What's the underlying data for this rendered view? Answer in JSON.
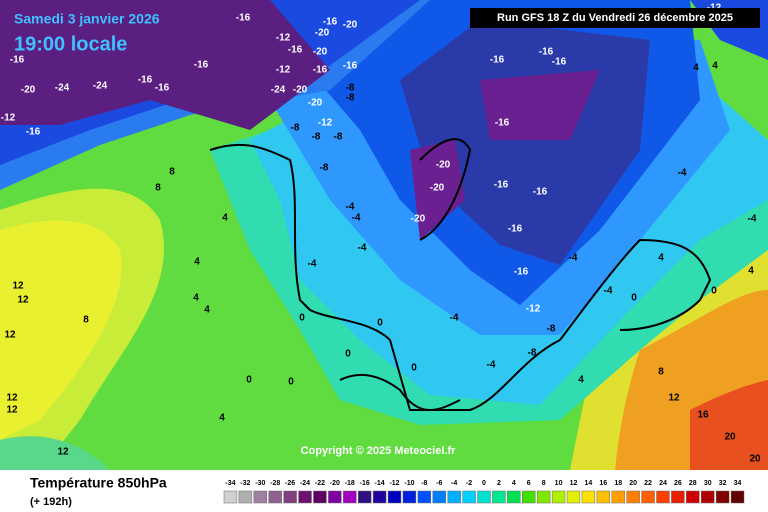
{
  "header": {
    "date": "Samedi 3 janvier 2026",
    "time": "19:00 locale",
    "run": "Run GFS 18 Z du Vendredi 26 décembre 2025"
  },
  "footer": {
    "copyright": "Copyright © 2025 Meteociel.fr",
    "title": "Température 850hPa",
    "lead": "(+ 192h)"
  },
  "scale": {
    "values": [
      -34,
      -32,
      -30,
      -28,
      -26,
      -24,
      -22,
      -20,
      -18,
      -16,
      -14,
      -12,
      -10,
      -8,
      -6,
      -4,
      -2,
      0,
      2,
      4,
      6,
      8,
      10,
      12,
      14,
      16,
      18,
      20,
      22,
      24,
      26,
      28,
      30,
      32,
      34
    ],
    "colors": [
      "#d0d0d0",
      "#b0b0b0",
      "#a080a0",
      "#906090",
      "#804080",
      "#701070",
      "#600060",
      "#8000a0",
      "#a000c0",
      "#301080",
      "#2000a0",
      "#0000c0",
      "#0020e0",
      "#0050ff",
      "#0080ff",
      "#00b0ff",
      "#00d0ff",
      "#00e0d0",
      "#00e890",
      "#00e050",
      "#40e000",
      "#80e800",
      "#b0f000",
      "#e0f000",
      "#ffe000",
      "#ffc000",
      "#ffa000",
      "#ff8000",
      "#ff6000",
      "#ff4000",
      "#e82000",
      "#d00000",
      "#b00000",
      "#800000",
      "#600000"
    ]
  },
  "map_labels": [
    -16,
    -16,
    -20,
    -12,
    -20,
    -16,
    -20,
    -16,
    -12,
    -16,
    -24,
    -20,
    -8,
    -8,
    -20,
    -12,
    -8,
    -8,
    -8,
    -8,
    -4,
    -4,
    -4,
    -4,
    0,
    0,
    0,
    0,
    0,
    0,
    4,
    4,
    4,
    4,
    4,
    8,
    8,
    8,
    12,
    12,
    12,
    12,
    12,
    12,
    -16,
    -16,
    -16,
    -16,
    -20,
    -24,
    -24,
    -12,
    -16,
    -20,
    -20,
    -20,
    -16,
    -16,
    -16,
    -16,
    -16,
    -16,
    -12,
    -8,
    -8,
    -4,
    -4,
    -4,
    -4,
    -4,
    -4,
    4,
    4,
    8,
    12,
    16,
    20,
    20,
    -12,
    -16,
    -16,
    4,
    4,
    0,
    0,
    4
  ]
}
